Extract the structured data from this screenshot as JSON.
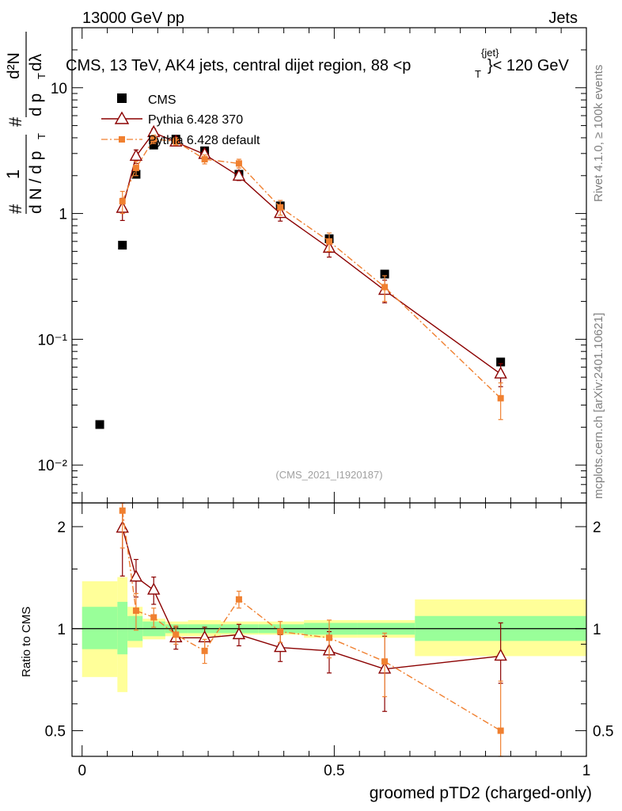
{
  "header": {
    "left": "13000 GeV pp",
    "right": "Jets"
  },
  "side_labels": {
    "rivet": "Rivet 4.1.0, ≥ 100k events",
    "mcplots": "mcplots.cern.ch [arXiv:2401.10621]"
  },
  "title": {
    "main": "CMS, 13 TeV, AK4 jets, central dijet region, 88 <p",
    "sub": "T",
    "sup": "{jet}",
    "end": "}< 120 GeV"
  },
  "watermark": "(CMS_2021_I1920187)",
  "ylabel_top": {
    "hash1": "#",
    "frac1_num": "1",
    "frac1_den": "d N / d p",
    "frac1_den_sub": "T",
    "hash2": "#",
    "frac2_num": "d²N",
    "frac2_den": "d p",
    "frac2_den_sub": "T",
    "frac2_den_end": "dλ"
  },
  "ylabel_bottom": "Ratio to CMS",
  "xlabel": "groomed pTD2 (charged-only)",
  "legend": [
    {
      "label": "CMS",
      "color": "#000000",
      "style": "square"
    },
    {
      "label": "Pythia 6.428 370",
      "color": "#8b0000",
      "style": "triangle"
    },
    {
      "label": "Pythia 6.428 default",
      "color": "#f08030",
      "style": "small-square-dashdot"
    }
  ],
  "chart_data": [
    {
      "type": "scatter",
      "panel": "main",
      "yscale": "log",
      "xlim": [
        -0.02,
        1.0
      ],
      "ylim": [
        0.005,
        30
      ],
      "x_ticks": [
        "0",
        "0.5",
        "1"
      ],
      "y_ticks": [
        "10⁻²",
        "10⁻¹",
        "1",
        "10"
      ],
      "series": [
        {
          "name": "CMS",
          "color": "#000000",
          "x": [
            0.035,
            0.08,
            0.107,
            0.142,
            0.186,
            0.243,
            0.311,
            0.393,
            0.49,
            0.6,
            0.83
          ],
          "values": [
            0.021,
            0.56,
            2.05,
            3.5,
            3.9,
            3.15,
            2.05,
            1.15,
            0.63,
            0.33,
            0.066
          ]
        },
        {
          "name": "Pythia 6.428 370",
          "color": "#8b0000",
          "x": [
            0.08,
            0.107,
            0.142,
            0.186,
            0.243,
            0.311,
            0.393,
            0.49,
            0.6,
            0.83
          ],
          "values": [
            1.1,
            2.85,
            4.4,
            3.7,
            2.95,
            1.98,
            1.0,
            0.53,
            0.245,
            0.053
          ],
          "err": [
            0.22,
            0.35,
            0.3,
            0.22,
            0.2,
            0.15,
            0.13,
            0.08,
            0.05,
            0.011
          ]
        },
        {
          "name": "Pythia 6.428 default",
          "color": "#f08030",
          "x": [
            0.08,
            0.107,
            0.142,
            0.186,
            0.243,
            0.311,
            0.393,
            0.49,
            0.6,
            0.83
          ],
          "values": [
            1.25,
            2.3,
            3.9,
            3.75,
            2.7,
            2.5,
            1.12,
            0.6,
            0.26,
            0.034
          ],
          "err": [
            0.25,
            0.3,
            0.3,
            0.25,
            0.22,
            0.2,
            0.15,
            0.1,
            0.06,
            0.011
          ]
        }
      ]
    },
    {
      "type": "scatter",
      "panel": "ratio",
      "yscale": "log",
      "xlim": [
        -0.02,
        1.0
      ],
      "ylim": [
        0.42,
        2.35
      ],
      "x_ticks": [
        "0",
        "0.5",
        "1"
      ],
      "y_ticks": [
        "0.5",
        "1",
        "2"
      ],
      "uncertainty_bands": {
        "bins": [
          [
            0.0,
            0.07
          ],
          [
            0.07,
            0.09
          ],
          [
            0.09,
            0.12
          ],
          [
            0.12,
            0.165
          ],
          [
            0.165,
            0.21
          ],
          [
            0.21,
            0.275
          ],
          [
            0.275,
            0.35
          ],
          [
            0.35,
            0.44
          ],
          [
            0.44,
            0.545
          ],
          [
            0.545,
            0.66
          ],
          [
            0.66,
            1.0
          ]
        ],
        "inner": [
          [
            0.87,
            1.16
          ],
          [
            0.84,
            1.2
          ],
          [
            0.92,
            1.09
          ],
          [
            0.95,
            1.05
          ],
          [
            0.97,
            1.03
          ],
          [
            0.97,
            1.03
          ],
          [
            0.97,
            1.03
          ],
          [
            0.97,
            1.03
          ],
          [
            0.96,
            1.04
          ],
          [
            0.96,
            1.04
          ],
          [
            0.92,
            1.09
          ]
        ],
        "outer": [
          [
            0.72,
            1.38
          ],
          [
            0.65,
            1.42
          ],
          [
            0.88,
            1.16
          ],
          [
            0.93,
            1.07
          ],
          [
            0.95,
            1.05
          ],
          [
            0.95,
            1.06
          ],
          [
            0.96,
            1.05
          ],
          [
            0.96,
            1.05
          ],
          [
            0.94,
            1.06
          ],
          [
            0.94,
            1.06
          ],
          [
            0.83,
            1.22
          ]
        ]
      },
      "series": [
        {
          "name": "Pythia 6.428 370",
          "color": "#8b0000",
          "x": [
            0.08,
            0.107,
            0.142,
            0.186,
            0.243,
            0.311,
            0.393,
            0.49,
            0.6,
            0.83
          ],
          "values": [
            1.98,
            1.42,
            1.3,
            0.94,
            0.94,
            0.96,
            0.88,
            0.86,
            0.76,
            0.83
          ],
          "err_low": [
            0.55,
            0.18,
            0.12,
            0.07,
            0.07,
            0.07,
            0.08,
            0.12,
            0.19,
            0.14
          ],
          "err_high": [
            0.55,
            0.18,
            0.12,
            0.07,
            0.07,
            0.07,
            0.08,
            0.12,
            0.19,
            0.21
          ]
        },
        {
          "name": "Pythia 6.428 default",
          "color": "#f08030",
          "x": [
            0.08,
            0.107,
            0.142,
            0.186,
            0.243,
            0.311,
            0.393,
            0.49,
            0.6,
            0.83
          ],
          "values": [
            2.23,
            1.13,
            1.08,
            0.96,
            0.86,
            1.22,
            0.98,
            0.94,
            0.8,
            0.5
          ],
          "err_low": [
            0.5,
            0.14,
            0.07,
            0.06,
            0.07,
            0.07,
            0.07,
            0.12,
            0.17,
            0.1
          ],
          "err_high": [
            0.5,
            0.14,
            0.07,
            0.06,
            0.07,
            0.07,
            0.07,
            0.12,
            0.17,
            0.2
          ]
        }
      ]
    }
  ]
}
